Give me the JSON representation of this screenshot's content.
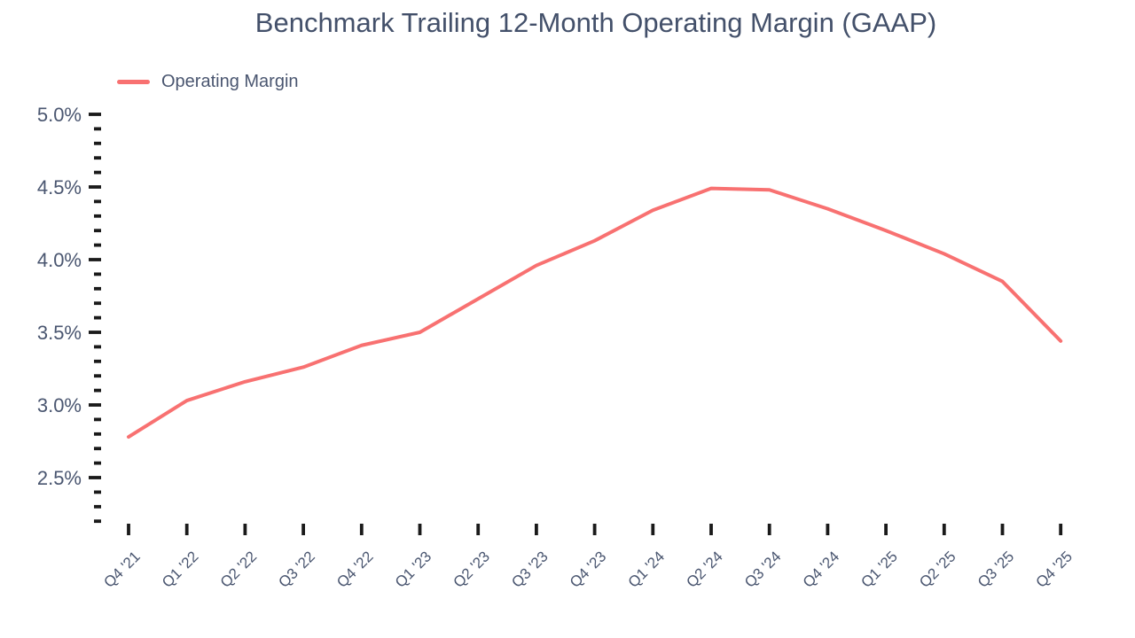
{
  "title": "Benchmark Trailing 12-Month Operating Margin (GAAP)",
  "legend": {
    "label": "Operating Margin",
    "swatch_color": "#f87171"
  },
  "colors": {
    "background": "#ffffff",
    "line": "#f87171",
    "title_text": "#43506a",
    "label_text": "#4a5670",
    "tick": "#1a1a1a"
  },
  "chart_data": {
    "type": "line",
    "title": "Benchmark Trailing 12-Month Operating Margin (GAAP)",
    "categories": [
      "Q4 '21",
      "Q1 '22",
      "Q2 '22",
      "Q3 '22",
      "Q4 '22",
      "Q1 '23",
      "Q2 '23",
      "Q3 '23",
      "Q4 '23",
      "Q1 '24",
      "Q2 '24",
      "Q3 '24",
      "Q4 '24",
      "Q1 '25",
      "Q2 '25",
      "Q3 '25",
      "Q4 '25"
    ],
    "series": [
      {
        "name": "Operating Margin",
        "color": "#f87171",
        "values": [
          2.78,
          3.03,
          3.16,
          3.26,
          3.41,
          3.5,
          3.73,
          3.96,
          4.13,
          4.34,
          4.49,
          4.48,
          4.35,
          4.2,
          4.04,
          3.85,
          3.44
        ]
      }
    ],
    "unit": "%",
    "ylim": [
      2.2,
      5.0
    ],
    "y_major_ticks": [
      2.5,
      3.0,
      3.5,
      4.0,
      4.5,
      5.0
    ],
    "y_tick_labels": [
      "2.5%",
      "3.0%",
      "3.5%",
      "4.0%",
      "4.5%",
      "5.0%"
    ],
    "y_minor_step": 0.1,
    "x_label_rotation": -45,
    "grid": false,
    "legend_position": "top-left",
    "markers": false
  }
}
